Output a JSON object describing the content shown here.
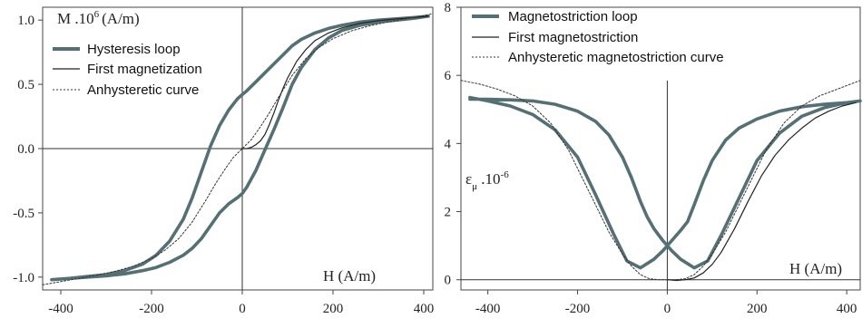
{
  "chart_data": [
    {
      "type": "line",
      "title": "",
      "ylabel": "M .10^6 (A/m)",
      "ylabel_parts": {
        "base": "M .10",
        "exp": "6",
        "unit": "(A/m)"
      },
      "xlabel": "H (A/m)",
      "xlim": [
        -440,
        420
      ],
      "ylim": [
        -1.1,
        1.1
      ],
      "x_ticks": [
        -400,
        -200,
        0,
        200,
        400
      ],
      "y_ticks": [
        -1.0,
        -0.5,
        0.0,
        0.5,
        1.0
      ],
      "x_tick_labels": [
        "-400",
        "-200",
        "0",
        "200",
        "400"
      ],
      "y_tick_labels": [
        "-1.0",
        "-0.5",
        "0.0",
        "0.5",
        "1.0"
      ],
      "legend_position": "top-left",
      "series": [
        {
          "name": "Hysteresis loop",
          "style": "thick",
          "color": "#557074",
          "x": [
            -420,
            -380,
            -340,
            -300,
            -260,
            -220,
            -190,
            -160,
            -130,
            -110,
            -90,
            -70,
            -50,
            -30,
            -10,
            0,
            10,
            30,
            50,
            70,
            90,
            110,
            130,
            160,
            190,
            220,
            260,
            300,
            340,
            380,
            410,
            410,
            380,
            340,
            300,
            260,
            220,
            190,
            160,
            130,
            110,
            90,
            70,
            50,
            30,
            10,
            0,
            -10,
            -30,
            -50,
            -70,
            -90,
            -110,
            -130,
            -160,
            -190,
            -220,
            -260,
            -300,
            -340,
            -380,
            -420
          ],
          "y": [
            -1.02,
            -1.01,
            -1.0,
            -0.99,
            -0.975,
            -0.95,
            -0.925,
            -0.885,
            -0.83,
            -0.775,
            -0.7,
            -0.6,
            -0.5,
            -0.43,
            -0.38,
            -0.35,
            -0.3,
            -0.17,
            -0.01,
            0.15,
            0.32,
            0.5,
            0.63,
            0.77,
            0.86,
            0.92,
            0.96,
            0.985,
            1.0,
            1.015,
            1.03,
            1.03,
            1.02,
            1.01,
            1.0,
            0.985,
            0.96,
            0.935,
            0.9,
            0.85,
            0.8,
            0.73,
            0.66,
            0.59,
            0.52,
            0.45,
            0.42,
            0.39,
            0.3,
            0.18,
            0.02,
            -0.18,
            -0.38,
            -0.55,
            -0.72,
            -0.83,
            -0.9,
            -0.95,
            -0.98,
            -0.995,
            -1.01,
            -1.02
          ]
        },
        {
          "name": "First magnetization",
          "style": "thin",
          "color": "#222222",
          "x": [
            0,
            10,
            20,
            30,
            40,
            50,
            60,
            70,
            80,
            90,
            100,
            120,
            140,
            160,
            190,
            220,
            260,
            300,
            340,
            380,
            410
          ],
          "y": [
            0.0,
            0.0,
            0.01,
            0.03,
            0.06,
            0.11,
            0.19,
            0.28,
            0.38,
            0.47,
            0.55,
            0.68,
            0.77,
            0.84,
            0.9,
            0.94,
            0.975,
            0.995,
            1.01,
            1.02,
            1.03
          ]
        },
        {
          "name": "Anhysteretic curve",
          "style": "dotted",
          "color": "#333333",
          "x": [
            -440,
            -400,
            -360,
            -320,
            -280,
            -240,
            -200,
            -170,
            -140,
            -110,
            -80,
            -60,
            -40,
            -20,
            0,
            20,
            40,
            60,
            80,
            110,
            140,
            170,
            200,
            240,
            280,
            320,
            360,
            400,
            420
          ],
          "y": [
            -1.06,
            -1.035,
            -1.01,
            -0.985,
            -0.955,
            -0.915,
            -0.855,
            -0.79,
            -0.7,
            -0.57,
            -0.4,
            -0.28,
            -0.17,
            -0.07,
            0.0,
            0.07,
            0.17,
            0.28,
            0.4,
            0.57,
            0.7,
            0.79,
            0.855,
            0.915,
            0.955,
            0.985,
            1.01,
            1.035,
            1.05
          ]
        }
      ]
    },
    {
      "type": "line",
      "title": "",
      "ylabel": "ε_μ .10^-6",
      "ylabel_parts": {
        "base": "ε",
        "sub": "μ",
        "mid": " .10",
        "exp": "-6"
      },
      "xlabel": "H (A/m)",
      "xlim": [
        -460,
        430
      ],
      "ylim": [
        -0.3,
        8
      ],
      "x_ticks": [
        -400,
        -200,
        0,
        200,
        400
      ],
      "y_ticks": [
        0,
        2,
        4,
        6,
        8
      ],
      "x_tick_labels": [
        "-400",
        "-200",
        "0",
        "200",
        "400"
      ],
      "y_tick_labels": [
        "0",
        "2",
        "4",
        "6",
        "8"
      ],
      "legend_position": "top-left",
      "series": [
        {
          "name": "Magnetostriction  loop",
          "style": "thick",
          "color": "#557074",
          "x": [
            -440,
            -400,
            -350,
            -300,
            -250,
            -200,
            -160,
            -130,
            -100,
            -80,
            -60,
            -45,
            -30,
            -10,
            10,
            30,
            60,
            90,
            120,
            160,
            200,
            250,
            300,
            350,
            400,
            430,
            430,
            400,
            350,
            300,
            250,
            200,
            160,
            130,
            100,
            80,
            60,
            45,
            30,
            10,
            -10,
            -30,
            -60,
            -90,
            -120,
            -160,
            -200,
            -250,
            -300,
            -350,
            -400,
            -440
          ],
          "y": [
            5.3,
            5.3,
            5.28,
            5.25,
            5.15,
            4.95,
            4.65,
            4.25,
            3.6,
            3.0,
            2.3,
            1.85,
            1.5,
            1.15,
            0.85,
            0.6,
            0.35,
            0.55,
            1.3,
            2.4,
            3.5,
            4.3,
            4.8,
            5.05,
            5.2,
            5.25,
            5.25,
            5.2,
            5.15,
            5.08,
            4.95,
            4.72,
            4.45,
            4.1,
            3.5,
            2.9,
            2.2,
            1.7,
            1.45,
            1.15,
            0.85,
            0.6,
            0.35,
            0.55,
            1.35,
            2.5,
            3.6,
            4.4,
            4.85,
            5.1,
            5.25,
            5.35
          ]
        },
        {
          "name": "First magnetostriction",
          "style": "thin",
          "color": "#222222",
          "x": [
            0,
            20,
            40,
            60,
            80,
            100,
            120,
            150,
            180,
            210,
            240,
            270,
            300,
            330,
            360,
            390,
            420
          ],
          "y": [
            0.0,
            -0.02,
            0.0,
            0.05,
            0.2,
            0.45,
            0.8,
            1.5,
            2.3,
            3.05,
            3.65,
            4.1,
            4.45,
            4.75,
            4.95,
            5.1,
            5.2
          ]
        },
        {
          "name": "Anhysteretic magnetostriction curve",
          "style": "dotted",
          "color": "#333333",
          "x": [
            -460,
            -420,
            -380,
            -340,
            -300,
            -260,
            -220,
            -190,
            -160,
            -130,
            -100,
            -80,
            -60,
            -40,
            -20,
            0,
            20,
            40,
            60,
            80,
            100,
            130,
            160,
            190,
            220,
            260,
            300,
            340,
            380,
            420,
            430
          ],
          "y": [
            5.85,
            5.75,
            5.6,
            5.4,
            5.1,
            4.6,
            3.8,
            3.0,
            2.2,
            1.4,
            0.75,
            0.4,
            0.15,
            0.03,
            0.0,
            0.0,
            0.0,
            0.03,
            0.15,
            0.4,
            0.75,
            1.4,
            2.2,
            3.0,
            3.8,
            4.6,
            5.1,
            5.4,
            5.6,
            5.8,
            5.85
          ]
        }
      ]
    }
  ]
}
